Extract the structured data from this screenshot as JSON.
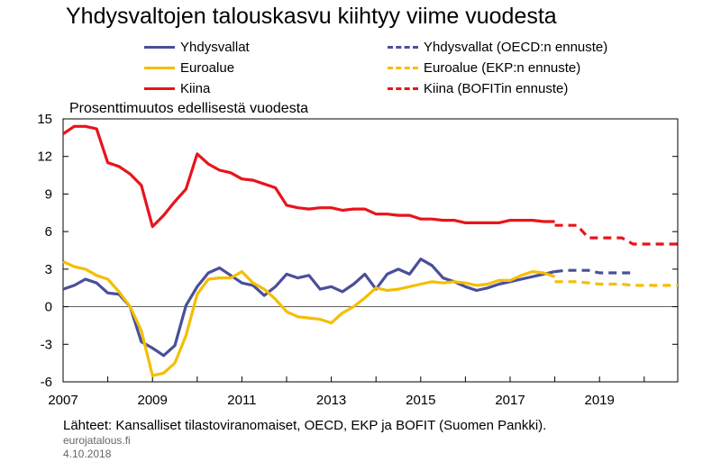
{
  "title": "Yhdysvaltojen talouskasvu kiihtyy viime vuodesta",
  "subtitle": "Prosenttimuutos edellisestä vuodesta",
  "source": "Lähteet: Kansalliset tilastoviranomaiset, OECD, EKP ja BOFIT (Suomen Pankki).",
  "site": "eurojatalous.fi",
  "date": "4.10.2018",
  "legend": [
    {
      "label": "Yhdysvallat",
      "color": "#4a4f9a",
      "style": "solid"
    },
    {
      "label": "Euroalue",
      "color": "#f5be00",
      "style": "solid"
    },
    {
      "label": "Kiina",
      "color": "#e8141b",
      "style": "solid"
    },
    {
      "label": "Yhdysvallat (OECD:n ennuste)",
      "color": "#4a4f9a",
      "style": "dashed"
    },
    {
      "label": "Euroalue (EKP:n ennuste)",
      "color": "#f5be00",
      "style": "dashed"
    },
    {
      "label": "Kiina (BOFITin ennuste)",
      "color": "#e8141b",
      "style": "dashed"
    }
  ],
  "chart_data": {
    "type": "line",
    "title": "Yhdysvaltojen talouskasvu kiihtyy viime vuodesta",
    "ylabel": "Prosenttimuutos edellisestä vuodesta",
    "xlim": [
      2007,
      2020.75
    ],
    "ylim": [
      -6,
      15
    ],
    "yticks": [
      -6,
      -3,
      0,
      3,
      6,
      9,
      12,
      15
    ],
    "xticks": [
      2007,
      2009,
      2011,
      2013,
      2015,
      2017,
      2019
    ],
    "grid": false,
    "legend_position": "top",
    "series": [
      {
        "name": "Yhdysvallat",
        "color": "#4a4f9a",
        "style": "solid",
        "x": [
          2007.0,
          2007.25,
          2007.5,
          2007.75,
          2008.0,
          2008.25,
          2008.5,
          2008.75,
          2009.0,
          2009.25,
          2009.5,
          2009.75,
          2010.0,
          2010.25,
          2010.5,
          2010.75,
          2011.0,
          2011.25,
          2011.5,
          2011.75,
          2012.0,
          2012.25,
          2012.5,
          2012.75,
          2013.0,
          2013.25,
          2013.5,
          2013.75,
          2014.0,
          2014.25,
          2014.5,
          2014.75,
          2015.0,
          2015.25,
          2015.5,
          2015.75,
          2016.0,
          2016.25,
          2016.5,
          2016.75,
          2017.0,
          2017.25,
          2017.5,
          2017.75,
          2018.0
        ],
        "y": [
          1.4,
          1.7,
          2.2,
          1.9,
          1.1,
          1.0,
          0.0,
          -2.8,
          -3.3,
          -3.9,
          -3.1,
          0.1,
          1.6,
          2.7,
          3.1,
          2.5,
          1.9,
          1.7,
          0.9,
          1.6,
          2.6,
          2.3,
          2.5,
          1.4,
          1.6,
          1.2,
          1.8,
          2.6,
          1.4,
          2.6,
          3.0,
          2.6,
          3.8,
          3.3,
          2.3,
          2.0,
          1.6,
          1.3,
          1.5,
          1.8,
          2.0,
          2.2,
          2.4,
          2.6,
          2.8
        ]
      },
      {
        "name": "Euroalue",
        "color": "#f5be00",
        "style": "solid",
        "x": [
          2007.0,
          2007.25,
          2007.5,
          2007.75,
          2008.0,
          2008.25,
          2008.5,
          2008.75,
          2009.0,
          2009.25,
          2009.5,
          2009.75,
          2010.0,
          2010.25,
          2010.5,
          2010.75,
          2011.0,
          2011.25,
          2011.5,
          2011.75,
          2012.0,
          2012.25,
          2012.5,
          2012.75,
          2013.0,
          2013.25,
          2013.5,
          2013.75,
          2014.0,
          2014.25,
          2014.5,
          2014.75,
          2015.0,
          2015.25,
          2015.5,
          2015.75,
          2016.0,
          2016.25,
          2016.5,
          2016.75,
          2017.0,
          2017.25,
          2017.5,
          2017.75,
          2018.0
        ],
        "y": [
          3.6,
          3.2,
          3.0,
          2.5,
          2.2,
          1.2,
          0.0,
          -1.9,
          -5.5,
          -5.3,
          -4.5,
          -2.3,
          1.0,
          2.2,
          2.3,
          2.3,
          2.8,
          1.9,
          1.4,
          0.6,
          -0.4,
          -0.8,
          -0.9,
          -1.0,
          -1.3,
          -0.5,
          0.0,
          0.7,
          1.5,
          1.3,
          1.4,
          1.6,
          1.8,
          2.0,
          1.9,
          2.0,
          1.9,
          1.7,
          1.8,
          2.1,
          2.1,
          2.5,
          2.8,
          2.7,
          2.4
        ]
      },
      {
        "name": "Kiina",
        "color": "#e8141b",
        "style": "solid",
        "x": [
          2007.0,
          2007.25,
          2007.5,
          2007.75,
          2008.0,
          2008.25,
          2008.5,
          2008.75,
          2009.0,
          2009.25,
          2009.5,
          2009.75,
          2010.0,
          2010.25,
          2010.5,
          2010.75,
          2011.0,
          2011.25,
          2011.5,
          2011.75,
          2012.0,
          2012.25,
          2012.5,
          2012.75,
          2013.0,
          2013.25,
          2013.5,
          2013.75,
          2014.0,
          2014.25,
          2014.5,
          2014.75,
          2015.0,
          2015.25,
          2015.5,
          2015.75,
          2016.0,
          2016.25,
          2016.5,
          2016.75,
          2017.0,
          2017.25,
          2017.5,
          2017.75,
          2018.0
        ],
        "y": [
          13.8,
          14.4,
          14.4,
          14.2,
          11.5,
          11.2,
          10.6,
          9.7,
          6.4,
          7.3,
          8.4,
          9.4,
          12.2,
          11.4,
          10.9,
          10.7,
          10.2,
          10.1,
          9.8,
          9.5,
          8.1,
          7.9,
          7.8,
          7.9,
          7.9,
          7.7,
          7.8,
          7.8,
          7.4,
          7.4,
          7.3,
          7.3,
          7.0,
          7.0,
          6.9,
          6.9,
          6.7,
          6.7,
          6.7,
          6.7,
          6.9,
          6.9,
          6.9,
          6.8,
          6.8
        ]
      },
      {
        "name": "Yhdysvallat (OECD:n ennuste)",
        "color": "#4a4f9a",
        "style": "dashed",
        "x": [
          2018.0,
          2018.25,
          2018.5,
          2018.75,
          2019.0,
          2019.25,
          2019.5,
          2019.75
        ],
        "y": [
          2.8,
          2.9,
          2.9,
          2.9,
          2.7,
          2.7,
          2.7,
          2.7
        ]
      },
      {
        "name": "Euroalue (EKP:n ennuste)",
        "color": "#f5be00",
        "style": "dashed",
        "x": [
          2018.0,
          2018.25,
          2018.5,
          2018.75,
          2019.0,
          2019.25,
          2019.5,
          2019.75,
          2020.0,
          2020.25,
          2020.5,
          2020.75
        ],
        "y": [
          2.0,
          2.0,
          2.0,
          1.9,
          1.8,
          1.8,
          1.8,
          1.7,
          1.7,
          1.7,
          1.7,
          1.7
        ]
      },
      {
        "name": "Kiina (BOFITin ennuste)",
        "color": "#e8141b",
        "style": "dashed",
        "x": [
          2018.0,
          2018.25,
          2018.5,
          2018.75,
          2019.0,
          2019.25,
          2019.5,
          2019.75,
          2020.0,
          2020.25,
          2020.5,
          2020.75
        ],
        "y": [
          6.5,
          6.5,
          6.5,
          5.5,
          5.5,
          5.5,
          5.5,
          5.0,
          5.0,
          5.0,
          5.0,
          5.0
        ]
      }
    ]
  }
}
